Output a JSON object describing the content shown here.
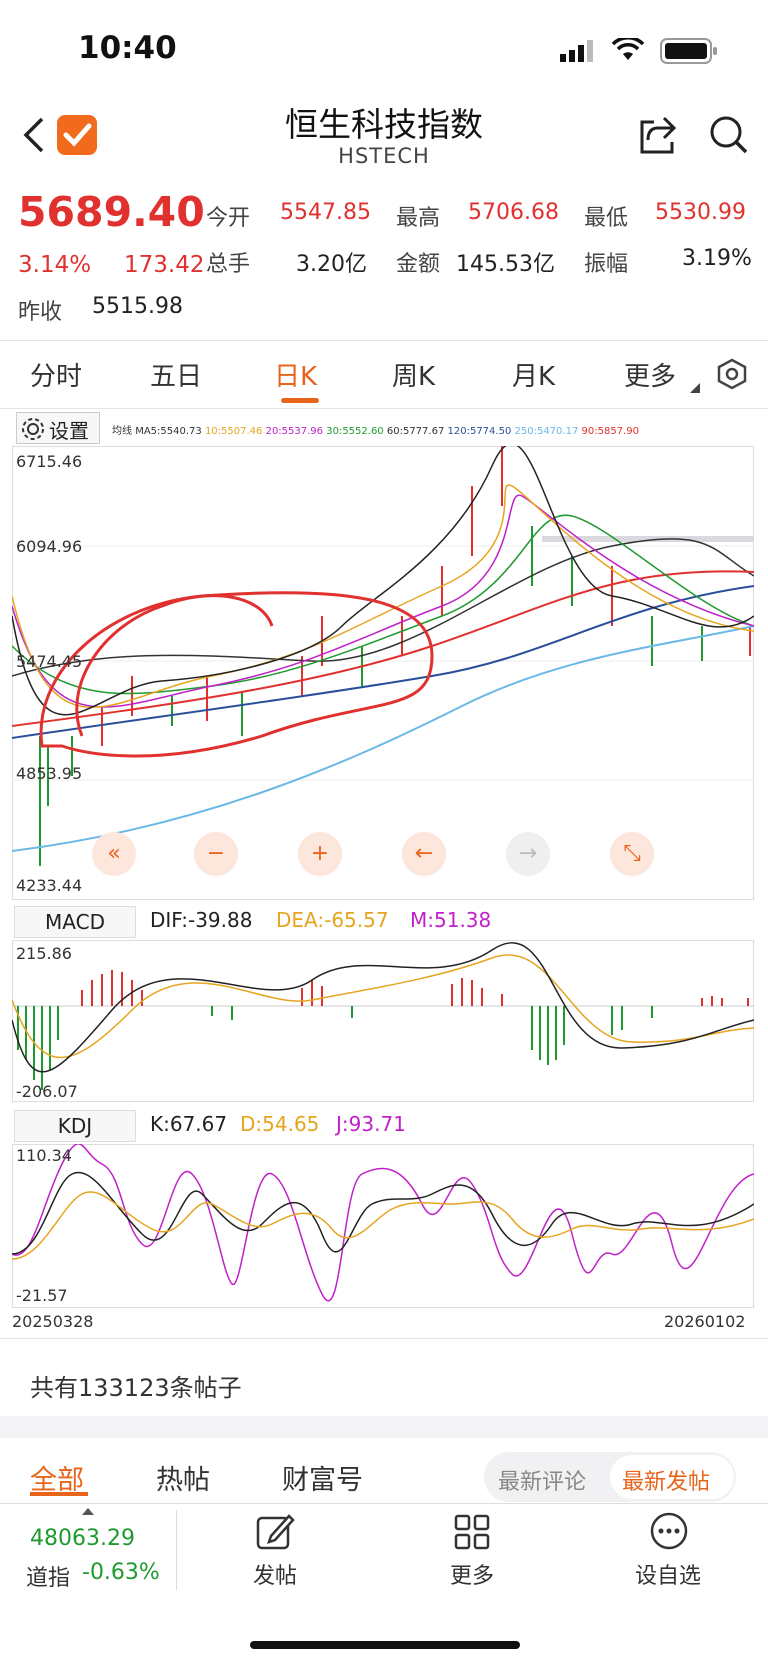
{
  "status_bar": {
    "time": "10:40"
  },
  "header": {
    "title": "恒生科技指数",
    "subtitle": "HSTECH"
  },
  "quote": {
    "price": "5689.40",
    "change_pct": "3.14%",
    "change": "173.42",
    "prev_close_label": "昨收",
    "prev_close": "5515.98",
    "stats": [
      {
        "label": "今开",
        "value": "5547.85"
      },
      {
        "label": "最高",
        "value": "5706.68"
      },
      {
        "label": "最低",
        "value": "5530.99"
      },
      {
        "label": "总手",
        "value": "3.20亿"
      },
      {
        "label": "金额",
        "value": "145.53亿"
      },
      {
        "label": "振幅",
        "value": "3.19%"
      }
    ]
  },
  "tabs": [
    "分时",
    "五日",
    "日K",
    "周K",
    "月K",
    "更多"
  ],
  "chart_toolbar": {
    "settings_label": "设置"
  },
  "ma_legend": [
    {
      "text": "均线",
      "color": "#333333"
    },
    {
      "text": "MA5:5540.73",
      "color": "#333333"
    },
    {
      "text": "10:5507.46",
      "color": "#e6a520"
    },
    {
      "text": "20:5537.96",
      "color": "#c020c8"
    },
    {
      "text": "30:5552.60",
      "color": "#1f9a2e"
    },
    {
      "text": "60:5777.67",
      "color": "#333333"
    },
    {
      "text": "120:5774.50",
      "color": "#2a4f9a"
    },
    {
      "text": "250:5470.17",
      "color": "#6ab8e6"
    },
    {
      "text": "90:5857.90",
      "color": "#e0312f"
    }
  ],
  "main_axis": {
    "top": "6715.46",
    "mid1": "6094.96",
    "mid2": "5474.45",
    "mid3": "4853.95",
    "bottom": "4233.44"
  },
  "chart_controls": [
    "«",
    "−",
    "+",
    "←",
    "→",
    "⤡"
  ],
  "macd": {
    "tab": "MACD",
    "dif": "DIF:-39.88",
    "dea": "DEA:-65.57",
    "m": "M:51.38",
    "axis_top": "215.86",
    "axis_bottom": "-206.07"
  },
  "kdj": {
    "tab": "KDJ",
    "k": "K:67.67",
    "d": "D:54.65",
    "j": "J:93.71",
    "axis_top": "110.34",
    "axis_bottom": "-21.57"
  },
  "date_range": {
    "start": "20250328",
    "end": "20260102"
  },
  "posts": {
    "count_text": "共有133123条帖子",
    "tabs": [
      "全部",
      "热帖",
      "财富号"
    ],
    "sort_options": [
      "最新评论",
      "最新发帖"
    ]
  },
  "bottom_bar": {
    "index_value": "48063.29",
    "index_name": "道指",
    "index_change": "-0.63%",
    "items": [
      "发帖",
      "更多",
      "设自选"
    ]
  },
  "colors": {
    "accent": "#e8641b",
    "up": "#e0312f",
    "down": "#1f9a2e"
  }
}
